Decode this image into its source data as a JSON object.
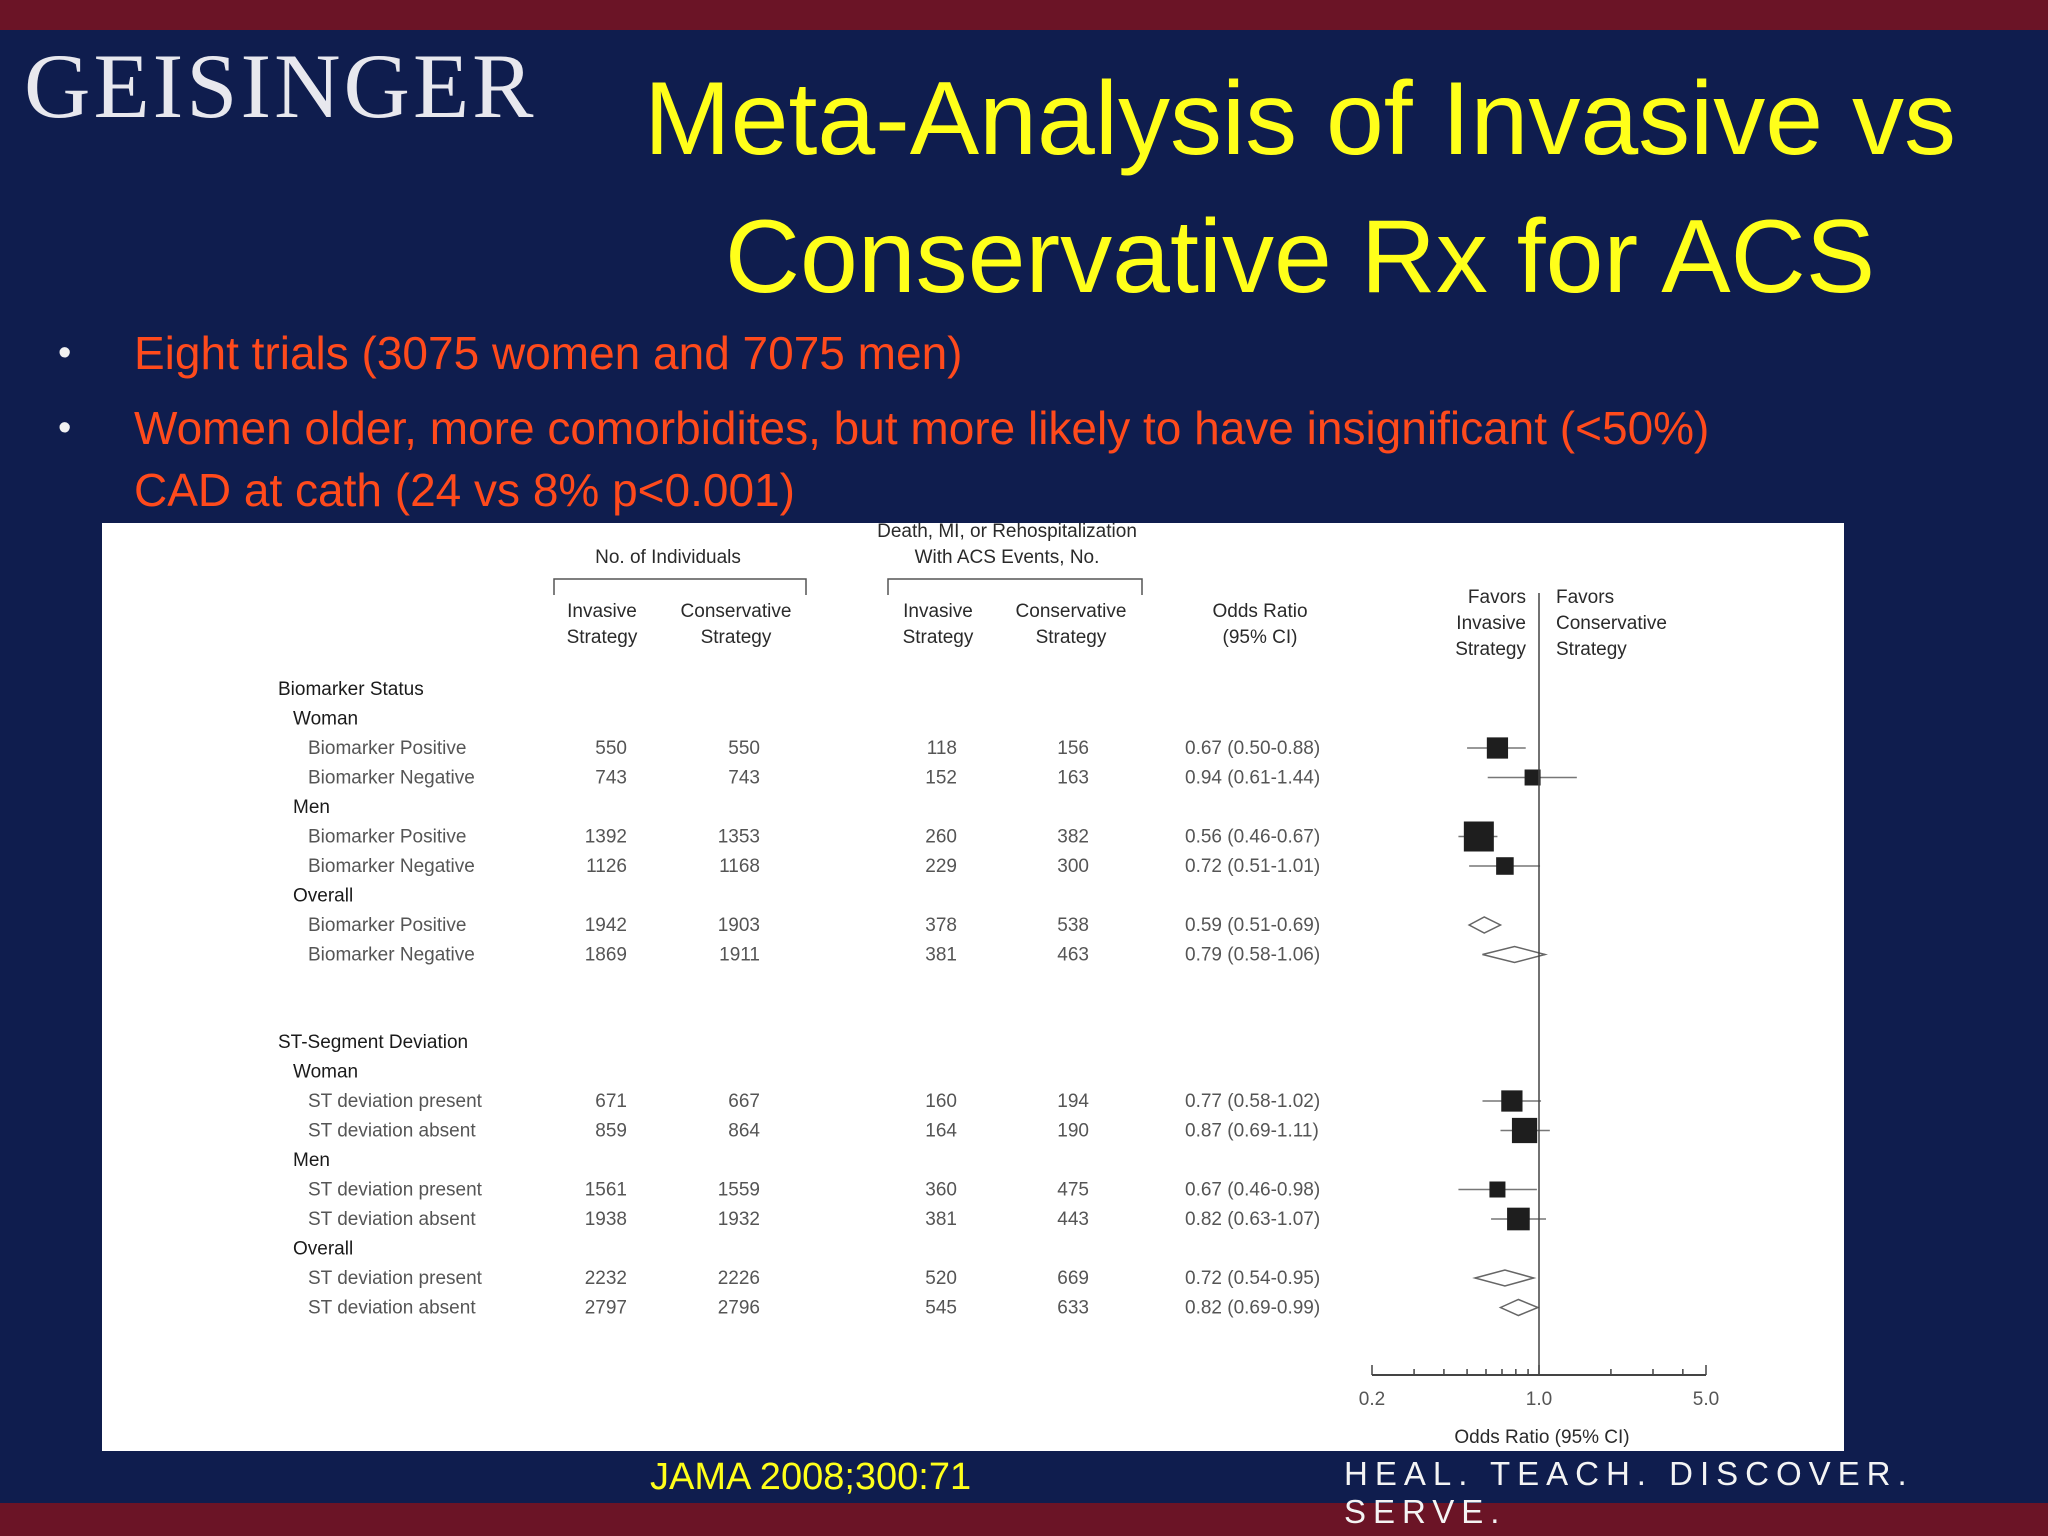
{
  "logo": "GEISINGER",
  "title_line1": "Meta-Analysis of Invasive vs",
  "title_line2": "Conservative Rx for ACS",
  "bullets": [
    {
      "line1": "Eight trials (3075 women and 7075 men)",
      "line2": ""
    },
    {
      "line1": "Women older, more comorbidites, but more likely to have insignificant (<50%)",
      "line2": "CAD at cath (24 vs 8% p<0.001)"
    }
  ],
  "citation": "JAMA 2008;300:71",
  "tagline": "HEAL. TEACH. DISCOVER. SERVE.",
  "colors": {
    "background": "#0f1d4e",
    "band": "#6b1426",
    "title": "#ffff1a",
    "bullet": "#ff4a1c"
  },
  "chart_data": {
    "type": "forest",
    "headers": {
      "individuals": "No. of Individuals",
      "events_line1": "Death, MI, or Rehospitalization",
      "events_line2": "With ACS Events, No.",
      "invasive_l1": "Invasive",
      "invasive_l2": "Strategy",
      "conservative_l1": "Conservative",
      "conservative_l2": "Strategy",
      "or_l1": "Odds Ratio",
      "or_l2": "(95% CI)",
      "favors_left": [
        "Favors",
        "Invasive",
        "Strategy"
      ],
      "favors_right": [
        "Favors",
        "Conservative",
        "Strategy"
      ]
    },
    "xlabel": "Odds Ratio (95% CI)",
    "xscale": "log",
    "xlim": [
      0.2,
      5.0
    ],
    "xticks": [
      "0.2",
      "1.0",
      "5.0"
    ],
    "rows": [
      {
        "kind": "section",
        "label": "Biomarker Status"
      },
      {
        "kind": "group",
        "label": "Woman"
      },
      {
        "kind": "trial",
        "label": "Biomarker Positive",
        "n_inv": "550",
        "n_con": "550",
        "e_inv": "118",
        "e_con": "156",
        "or_text": "0.67 (0.50-0.88)",
        "or": 0.67,
        "lo": 0.5,
        "hi": 0.88
      },
      {
        "kind": "trial",
        "label": "Biomarker Negative",
        "n_inv": "743",
        "n_con": "743",
        "e_inv": "152",
        "e_con": "163",
        "or_text": "0.94 (0.61-1.44)",
        "or": 0.94,
        "lo": 0.61,
        "hi": 1.44
      },
      {
        "kind": "group",
        "label": "Men"
      },
      {
        "kind": "trial",
        "label": "Biomarker Positive",
        "n_inv": "1392",
        "n_con": "1353",
        "e_inv": "260",
        "e_con": "382",
        "or_text": "0.56 (0.46-0.67)",
        "or": 0.56,
        "lo": 0.46,
        "hi": 0.67
      },
      {
        "kind": "trial",
        "label": "Biomarker Negative",
        "n_inv": "1126",
        "n_con": "1168",
        "e_inv": "229",
        "e_con": "300",
        "or_text": "0.72 (0.51-1.01)",
        "or": 0.72,
        "lo": 0.51,
        "hi": 1.01
      },
      {
        "kind": "group",
        "label": "Overall"
      },
      {
        "kind": "pooled",
        "label": "Biomarker Positive",
        "n_inv": "1942",
        "n_con": "1903",
        "e_inv": "378",
        "e_con": "538",
        "or_text": "0.59 (0.51-0.69)",
        "or": 0.59,
        "lo": 0.51,
        "hi": 0.69
      },
      {
        "kind": "pooled",
        "label": "Biomarker Negative",
        "n_inv": "1869",
        "n_con": "1911",
        "e_inv": "381",
        "e_con": "463",
        "or_text": "0.79 (0.58-1.06)",
        "or": 0.79,
        "lo": 0.58,
        "hi": 1.06
      },
      {
        "kind": "gap"
      },
      {
        "kind": "section",
        "label": "ST-Segment Deviation"
      },
      {
        "kind": "group",
        "label": "Woman"
      },
      {
        "kind": "trial",
        "label": "ST deviation present",
        "n_inv": "671",
        "n_con": "667",
        "e_inv": "160",
        "e_con": "194",
        "or_text": "0.77 (0.58-1.02)",
        "or": 0.77,
        "lo": 0.58,
        "hi": 1.02
      },
      {
        "kind": "trial",
        "label": "ST deviation absent",
        "n_inv": "859",
        "n_con": "864",
        "e_inv": "164",
        "e_con": "190",
        "or_text": "0.87 (0.69-1.11)",
        "or": 0.87,
        "lo": 0.69,
        "hi": 1.11
      },
      {
        "kind": "group",
        "label": "Men"
      },
      {
        "kind": "trial",
        "label": "ST deviation present",
        "n_inv": "1561",
        "n_con": "1559",
        "e_inv": "360",
        "e_con": "475",
        "or_text": "0.67 (0.46-0.98)",
        "or": 0.67,
        "lo": 0.46,
        "hi": 0.98
      },
      {
        "kind": "trial",
        "label": "ST deviation absent",
        "n_inv": "1938",
        "n_con": "1932",
        "e_inv": "381",
        "e_con": "443",
        "or_text": "0.82 (0.63-1.07)",
        "or": 0.82,
        "lo": 0.63,
        "hi": 1.07
      },
      {
        "kind": "group",
        "label": "Overall"
      },
      {
        "kind": "pooled",
        "label": "ST deviation present",
        "n_inv": "2232",
        "n_con": "2226",
        "e_inv": "520",
        "e_con": "669",
        "or_text": "0.72 (0.54-0.95)",
        "or": 0.72,
        "lo": 0.54,
        "hi": 0.95
      },
      {
        "kind": "pooled",
        "label": "ST deviation absent",
        "n_inv": "2797",
        "n_con": "2796",
        "e_inv": "545",
        "e_con": "633",
        "or_text": "0.82 (0.69-0.99)",
        "or": 0.82,
        "lo": 0.69,
        "hi": 0.99
      }
    ]
  }
}
